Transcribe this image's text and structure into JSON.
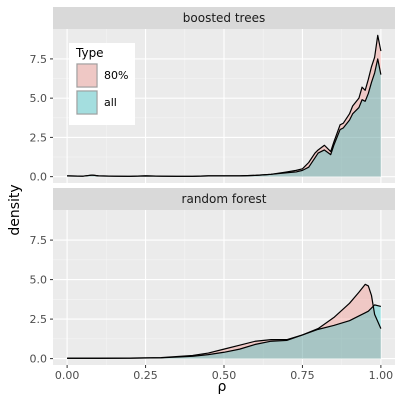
{
  "chart_data": {
    "type": "area",
    "x_label": "ρ",
    "y_label": "density",
    "x_range": [
      0,
      1
    ],
    "y_range": [
      0,
      9
    ],
    "x_ticks": [
      "0.00",
      "0.25",
      "0.50",
      "0.75",
      "1.00"
    ],
    "x_tick_values": [
      0,
      0.25,
      0.5,
      0.75,
      1.0
    ],
    "y_ticks": [
      "0.0",
      "2.5",
      "5.0",
      "7.5"
    ],
    "y_tick_values": [
      0,
      2.5,
      5.0,
      7.5
    ],
    "grid": true,
    "legend": {
      "title": "Type",
      "placement": "top-left inside first panel",
      "entries": [
        {
          "label": "80%",
          "color": "#F8766D"
        },
        {
          "label": "all",
          "color": "#00BFC4"
        }
      ]
    },
    "panels": [
      {
        "title": "boosted trees",
        "series": [
          {
            "name": "80%",
            "color": "#F8766D",
            "x": [
              0.0,
              0.05,
              0.08,
              0.1,
              0.15,
              0.2,
              0.25,
              0.3,
              0.35,
              0.4,
              0.45,
              0.5,
              0.55,
              0.6,
              0.65,
              0.7,
              0.73,
              0.75,
              0.77,
              0.79,
              0.8,
              0.82,
              0.84,
              0.85,
              0.87,
              0.88,
              0.9,
              0.91,
              0.93,
              0.94,
              0.95,
              0.96,
              0.97,
              0.98,
              0.99,
              1.0
            ],
            "y": [
              0.05,
              0.03,
              0.1,
              0.05,
              0.03,
              0.02,
              0.05,
              0.03,
              0.02,
              0.02,
              0.05,
              0.05,
              0.05,
              0.08,
              0.15,
              0.3,
              0.4,
              0.5,
              0.9,
              1.5,
              1.7,
              2.0,
              1.6,
              2.2,
              3.3,
              3.4,
              4.0,
              4.5,
              5.0,
              5.7,
              5.5,
              6.2,
              7.0,
              7.6,
              9.0,
              8.0
            ]
          },
          {
            "name": "all",
            "color": "#00BFC4",
            "x": [
              0.0,
              0.05,
              0.08,
              0.1,
              0.15,
              0.2,
              0.25,
              0.3,
              0.35,
              0.4,
              0.45,
              0.5,
              0.55,
              0.6,
              0.65,
              0.7,
              0.73,
              0.75,
              0.77,
              0.79,
              0.8,
              0.82,
              0.84,
              0.85,
              0.87,
              0.88,
              0.9,
              0.91,
              0.93,
              0.94,
              0.95,
              0.96,
              0.97,
              0.98,
              0.99,
              1.0
            ],
            "y": [
              0.05,
              0.03,
              0.1,
              0.05,
              0.03,
              0.02,
              0.05,
              0.03,
              0.02,
              0.02,
              0.05,
              0.05,
              0.05,
              0.08,
              0.15,
              0.25,
              0.3,
              0.4,
              0.6,
              1.2,
              1.5,
              1.7,
              1.4,
              2.0,
              3.0,
              3.1,
              3.6,
              4.0,
              4.4,
              4.9,
              4.8,
              5.3,
              6.0,
              6.6,
              7.5,
              6.5
            ]
          }
        ]
      },
      {
        "title": "random forest",
        "series": [
          {
            "name": "80%",
            "color": "#F8766D",
            "x": [
              0.0,
              0.1,
              0.2,
              0.3,
              0.4,
              0.45,
              0.5,
              0.55,
              0.6,
              0.65,
              0.7,
              0.75,
              0.8,
              0.85,
              0.9,
              0.93,
              0.95,
              0.96,
              0.97,
              0.98,
              1.0
            ],
            "y": [
              0.02,
              0.02,
              0.03,
              0.06,
              0.2,
              0.35,
              0.6,
              0.85,
              1.1,
              1.2,
              1.2,
              1.5,
              1.9,
              2.6,
              3.5,
              4.2,
              4.7,
              4.6,
              4.0,
              2.8,
              1.9
            ]
          },
          {
            "name": "all",
            "color": "#00BFC4",
            "x": [
              0.0,
              0.1,
              0.2,
              0.3,
              0.4,
              0.45,
              0.5,
              0.55,
              0.6,
              0.65,
              0.7,
              0.75,
              0.8,
              0.85,
              0.9,
              0.93,
              0.95,
              0.96,
              0.97,
              0.98,
              1.0
            ],
            "y": [
              0.02,
              0.02,
              0.03,
              0.05,
              0.15,
              0.25,
              0.4,
              0.6,
              0.9,
              1.1,
              1.15,
              1.5,
              1.85,
              2.1,
              2.4,
              2.7,
              2.9,
              3.0,
              3.2,
              3.4,
              3.3
            ]
          }
        ]
      }
    ]
  }
}
